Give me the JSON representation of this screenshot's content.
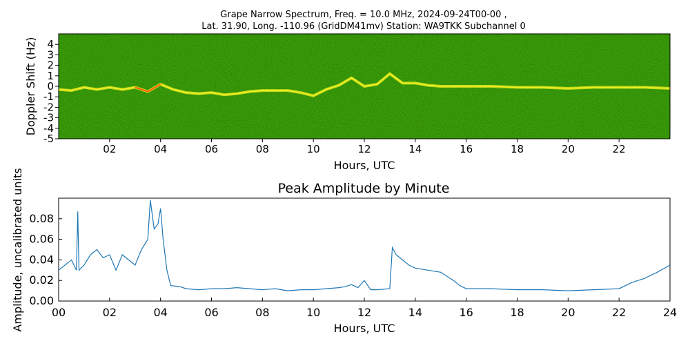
{
  "spectrogram": {
    "title_line1": "Grape Narrow Spectrum, Freq. = 10.0 MHz, 2024-09-24T00-00 ,",
    "title_line2": "Lat.  31.90, Long. -110.96 (GridDM41mv) Station: WA9TKK Subchannel 0",
    "xlabel": "Hours, UTC",
    "ylabel": "Doppler Shift (Hz)",
    "x_ticks": [
      "02",
      "04",
      "06",
      "08",
      "10",
      "12",
      "14",
      "16",
      "18",
      "20",
      "22"
    ],
    "y_ticks": [
      "4",
      "3",
      "2",
      "1",
      "0",
      "-1",
      "-2",
      "-3",
      "-4",
      "-5"
    ],
    "colors": {
      "background": "#2e8a12",
      "trace": "#f0f020",
      "peak": "#ff6010"
    }
  },
  "chart_data": [
    {
      "type": "heatmap",
      "title": "Grape Narrow Spectrum, Freq. = 10.0 MHz, 2024-09-24T00-00 , Lat.  31.90, Long. -110.96 (GridDM41mv) Station: WA9TKK Subchannel 0",
      "xlabel": "Hours, UTC",
      "ylabel": "Doppler Shift (Hz)",
      "xlim": [
        0,
        24
      ],
      "ylim": [
        -5,
        5
      ],
      "doppler_trace": {
        "x": [
          0,
          0.5,
          1,
          1.5,
          2,
          2.5,
          3,
          3.5,
          4,
          4.5,
          5,
          5.5,
          6,
          6.5,
          7,
          7.5,
          8,
          8.5,
          9,
          9.5,
          10,
          10.5,
          11,
          11.5,
          12,
          12.5,
          13,
          13.5,
          14,
          14.5,
          15,
          15.5,
          16,
          17,
          18,
          19,
          20,
          21,
          22,
          23,
          24
        ],
        "y": [
          -0.3,
          -0.4,
          -0.1,
          -0.3,
          -0.1,
          -0.3,
          -0.1,
          -0.5,
          0.2,
          -0.3,
          -0.6,
          -0.7,
          -0.6,
          -0.8,
          -0.7,
          -0.5,
          -0.4,
          -0.4,
          -0.4,
          -0.6,
          -0.9,
          -0.3,
          0.1,
          0.8,
          0.0,
          0.2,
          1.2,
          0.3,
          0.3,
          0.1,
          0.0,
          0.0,
          0.0,
          0.0,
          -0.1,
          -0.1,
          -0.2,
          -0.1,
          -0.1,
          -0.1,
          -0.2
        ]
      }
    },
    {
      "type": "line",
      "title": "Peak Amplitude by Minute",
      "xlabel": "Hours, UTC",
      "ylabel": "Amplitude, uncalibrated units",
      "xlim": [
        0,
        24
      ],
      "ylim": [
        0,
        0.1
      ],
      "x_ticks": [
        "00",
        "02",
        "04",
        "06",
        "08",
        "10",
        "12",
        "14",
        "16",
        "18",
        "20",
        "22",
        "24"
      ],
      "y_ticks": [
        "0.00",
        "0.02",
        "0.04",
        "0.06",
        "0.08"
      ],
      "color": "#1f77b4",
      "x": [
        0,
        0.25,
        0.5,
        0.7,
        0.75,
        0.8,
        1,
        1.25,
        1.5,
        1.75,
        2,
        2.25,
        2.5,
        2.75,
        3,
        3.25,
        3.5,
        3.6,
        3.75,
        3.9,
        4.0,
        4.1,
        4.25,
        4.4,
        4.75,
        5,
        5.5,
        6,
        6.5,
        7,
        7.5,
        8,
        8.5,
        9,
        9.5,
        10,
        10.5,
        11,
        11.25,
        11.5,
        11.75,
        12.0,
        12.25,
        12.5,
        13.0,
        13.1,
        13.25,
        13.5,
        13.75,
        14,
        14.5,
        15,
        15.5,
        15.75,
        16,
        17,
        18,
        19,
        20,
        21,
        22,
        22.5,
        23,
        23.5,
        24
      ],
      "y": [
        0.03,
        0.035,
        0.04,
        0.03,
        0.087,
        0.03,
        0.035,
        0.045,
        0.05,
        0.042,
        0.045,
        0.03,
        0.045,
        0.04,
        0.035,
        0.05,
        0.06,
        0.098,
        0.07,
        0.075,
        0.09,
        0.06,
        0.03,
        0.015,
        0.014,
        0.012,
        0.011,
        0.012,
        0.012,
        0.013,
        0.012,
        0.011,
        0.012,
        0.01,
        0.011,
        0.011,
        0.012,
        0.013,
        0.014,
        0.016,
        0.013,
        0.02,
        0.011,
        0.011,
        0.012,
        0.052,
        0.045,
        0.04,
        0.035,
        0.032,
        0.03,
        0.028,
        0.02,
        0.015,
        0.012,
        0.012,
        0.011,
        0.011,
        0.01,
        0.011,
        0.012,
        0.018,
        0.022,
        0.028,
        0.035
      ]
    }
  ],
  "amplitude": {
    "title": "Peak Amplitude by Minute",
    "xlabel": "Hours, UTC",
    "ylabel": "Amplitude, uncalibrated units"
  }
}
